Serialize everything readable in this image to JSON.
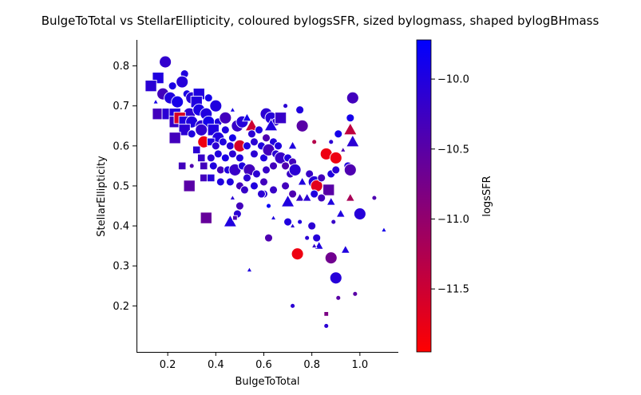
{
  "chart_data": {
    "type": "scatter",
    "title": "BulgeToTotal vs StellarEllipticity, coloured bylogsSFR, sized bylogmass, shaped bylogBHmass",
    "xlabel": "BulgeToTotal",
    "ylabel": "StellarEllipticity",
    "xlim": [
      0.07,
      1.16
    ],
    "ylim": [
      0.085,
      0.865
    ],
    "xticks": [
      0.2,
      0.4,
      0.6,
      0.8,
      1.0
    ],
    "xtick_labels": [
      "0.2",
      "0.4",
      "0.6",
      "0.8",
      "1.0"
    ],
    "yticks": [
      0.2,
      0.3,
      0.4,
      0.5,
      0.6,
      0.7,
      0.8
    ],
    "ytick_labels": [
      "0.2",
      "0.3",
      "0.4",
      "0.5",
      "0.6",
      "0.7",
      "0.8"
    ],
    "grid": false,
    "colorbar": {
      "label": "logsSFR",
      "range": [
        -11.95,
        -9.72
      ],
      "ticks": [
        -10.0,
        -10.5,
        -11.0,
        -11.5
      ],
      "tick_labels": [
        "−10.0",
        "−10.5",
        "−11.0",
        "−11.5"
      ],
      "colors": [
        "#ff0000",
        "#0000ff"
      ]
    },
    "size_variable": "logmass",
    "shape_variable": "logBHmass",
    "points": [
      {
        "x": 0.19,
        "y": 0.81,
        "c": -10.15,
        "s": 3,
        "m": "o"
      },
      {
        "x": 0.16,
        "y": 0.77,
        "c": -10.0,
        "s": 3,
        "m": "s"
      },
      {
        "x": 0.13,
        "y": 0.75,
        "c": -10.1,
        "s": 3,
        "m": "s"
      },
      {
        "x": 0.27,
        "y": 0.78,
        "c": -10.0,
        "s": 2,
        "m": "o"
      },
      {
        "x": 0.26,
        "y": 0.76,
        "c": -10.05,
        "s": 3,
        "m": "o"
      },
      {
        "x": 0.22,
        "y": 0.75,
        "c": -9.95,
        "s": 2,
        "m": "o"
      },
      {
        "x": 0.18,
        "y": 0.73,
        "c": -10.3,
        "s": 3,
        "m": "o"
      },
      {
        "x": 0.21,
        "y": 0.72,
        "c": -10.0,
        "s": 3,
        "m": "o"
      },
      {
        "x": 0.24,
        "y": 0.71,
        "c": -9.9,
        "s": 3,
        "m": "o"
      },
      {
        "x": 0.15,
        "y": 0.71,
        "c": -9.9,
        "s": 1,
        "m": "^"
      },
      {
        "x": 0.28,
        "y": 0.73,
        "c": -9.95,
        "s": 2,
        "m": "o"
      },
      {
        "x": 0.3,
        "y": 0.72,
        "c": -10.05,
        "s": 3,
        "m": "o"
      },
      {
        "x": 0.33,
        "y": 0.73,
        "c": -10.0,
        "s": 3,
        "m": "s"
      },
      {
        "x": 0.32,
        "y": 0.71,
        "c": -10.0,
        "s": 3,
        "m": "s"
      },
      {
        "x": 0.37,
        "y": 0.72,
        "c": -9.9,
        "s": 2,
        "m": "o"
      },
      {
        "x": 0.4,
        "y": 0.7,
        "c": -10.0,
        "s": 3,
        "m": "o"
      },
      {
        "x": 0.16,
        "y": 0.68,
        "c": -10.3,
        "s": 3,
        "m": "s"
      },
      {
        "x": 0.2,
        "y": 0.68,
        "c": -10.1,
        "s": 3,
        "m": "s"
      },
      {
        "x": 0.23,
        "y": 0.68,
        "c": -10.0,
        "s": 3,
        "m": "s"
      },
      {
        "x": 0.29,
        "y": 0.68,
        "c": -10.1,
        "s": 3,
        "m": "o"
      },
      {
        "x": 0.33,
        "y": 0.69,
        "c": -9.95,
        "s": 3,
        "m": "o"
      },
      {
        "x": 0.36,
        "y": 0.68,
        "c": -10.0,
        "s": 3,
        "m": "o"
      },
      {
        "x": 0.23,
        "y": 0.66,
        "c": -10.2,
        "s": 3,
        "m": "s"
      },
      {
        "x": 0.25,
        "y": 0.67,
        "c": -11.6,
        "s": 3,
        "m": "s"
      },
      {
        "x": 0.27,
        "y": 0.66,
        "c": -10.0,
        "s": 3,
        "m": "s"
      },
      {
        "x": 0.3,
        "y": 0.66,
        "c": -10.0,
        "s": 3,
        "m": "o"
      },
      {
        "x": 0.34,
        "y": 0.65,
        "c": -10.1,
        "s": 3,
        "m": "o"
      },
      {
        "x": 0.37,
        "y": 0.66,
        "c": -9.9,
        "s": 3,
        "m": "o"
      },
      {
        "x": 0.41,
        "y": 0.66,
        "c": -10.0,
        "s": 2,
        "m": "o"
      },
      {
        "x": 0.44,
        "y": 0.67,
        "c": -10.3,
        "s": 3,
        "m": "o"
      },
      {
        "x": 0.47,
        "y": 0.69,
        "c": -9.9,
        "s": 1,
        "m": "^"
      },
      {
        "x": 0.27,
        "y": 0.64,
        "c": -10.1,
        "s": 3,
        "m": "s"
      },
      {
        "x": 0.23,
        "y": 0.62,
        "c": -10.3,
        "s": 3,
        "m": "s"
      },
      {
        "x": 0.3,
        "y": 0.63,
        "c": -10.0,
        "s": 2,
        "m": "o"
      },
      {
        "x": 0.34,
        "y": 0.64,
        "c": -10.15,
        "s": 3,
        "m": "o"
      },
      {
        "x": 0.39,
        "y": 0.64,
        "c": -10.0,
        "s": 3,
        "m": "s"
      },
      {
        "x": 0.41,
        "y": 0.62,
        "c": -10.0,
        "s": 3,
        "m": "o"
      },
      {
        "x": 0.44,
        "y": 0.64,
        "c": -10.0,
        "s": 2,
        "m": "o"
      },
      {
        "x": 0.47,
        "y": 0.62,
        "c": -9.9,
        "s": 2,
        "m": "o"
      },
      {
        "x": 0.49,
        "y": 0.65,
        "c": -10.2,
        "s": 3,
        "m": "o"
      },
      {
        "x": 0.51,
        "y": 0.66,
        "c": -10.05,
        "s": 3,
        "m": "o"
      },
      {
        "x": 0.53,
        "y": 0.67,
        "c": -9.9,
        "s": 2,
        "m": "^"
      },
      {
        "x": 0.55,
        "y": 0.65,
        "c": -11.5,
        "s": 3,
        "m": "^"
      },
      {
        "x": 0.55,
        "y": 0.63,
        "c": -10.1,
        "s": 2,
        "m": "o"
      },
      {
        "x": 0.58,
        "y": 0.64,
        "c": -10.0,
        "s": 2,
        "m": "o"
      },
      {
        "x": 0.61,
        "y": 0.68,
        "c": -10.1,
        "s": 3,
        "m": "o"
      },
      {
        "x": 0.63,
        "y": 0.67,
        "c": -10.05,
        "s": 3,
        "m": "o"
      },
      {
        "x": 0.65,
        "y": 0.66,
        "c": -10.1,
        "s": 2,
        "m": "o"
      },
      {
        "x": 0.67,
        "y": 0.67,
        "c": -10.2,
        "s": 3,
        "m": "s"
      },
      {
        "x": 0.63,
        "y": 0.65,
        "c": -10.0,
        "s": 3,
        "m": "^"
      },
      {
        "x": 0.69,
        "y": 0.7,
        "c": -10.1,
        "s": 1,
        "m": "o"
      },
      {
        "x": 0.75,
        "y": 0.69,
        "c": -10.0,
        "s": 2,
        "m": "o"
      },
      {
        "x": 0.35,
        "y": 0.61,
        "c": -11.8,
        "s": 3,
        "m": "o"
      },
      {
        "x": 0.38,
        "y": 0.61,
        "c": -10.0,
        "s": 2,
        "m": "s"
      },
      {
        "x": 0.4,
        "y": 0.6,
        "c": -10.1,
        "s": 2,
        "m": "o"
      },
      {
        "x": 0.43,
        "y": 0.61,
        "c": -10.0,
        "s": 2,
        "m": "o"
      },
      {
        "x": 0.46,
        "y": 0.6,
        "c": -10.05,
        "s": 2,
        "m": "o"
      },
      {
        "x": 0.5,
        "y": 0.6,
        "c": -11.6,
        "s": 3,
        "m": "o"
      },
      {
        "x": 0.53,
        "y": 0.6,
        "c": -10.0,
        "s": 2,
        "m": "o"
      },
      {
        "x": 0.56,
        "y": 0.61,
        "c": -10.1,
        "s": 2,
        "m": "o"
      },
      {
        "x": 0.59,
        "y": 0.6,
        "c": -10.0,
        "s": 2,
        "m": "o"
      },
      {
        "x": 0.61,
        "y": 0.62,
        "c": -10.4,
        "s": 2,
        "m": "o"
      },
      {
        "x": 0.64,
        "y": 0.61,
        "c": -10.0,
        "s": 2,
        "m": "o"
      },
      {
        "x": 0.66,
        "y": 0.6,
        "c": -10.0,
        "s": 2,
        "m": "o"
      },
      {
        "x": 0.72,
        "y": 0.6,
        "c": -10.0,
        "s": 2,
        "m": "^"
      },
      {
        "x": 0.76,
        "y": 0.65,
        "c": -10.5,
        "s": 3,
        "m": "o"
      },
      {
        "x": 0.32,
        "y": 0.59,
        "c": -10.1,
        "s": 2,
        "m": "s"
      },
      {
        "x": 0.34,
        "y": 0.57,
        "c": -10.2,
        "s": 2,
        "m": "s"
      },
      {
        "x": 0.38,
        "y": 0.57,
        "c": -10.1,
        "s": 2,
        "m": "o"
      },
      {
        "x": 0.41,
        "y": 0.58,
        "c": -10.0,
        "s": 2,
        "m": "o"
      },
      {
        "x": 0.44,
        "y": 0.57,
        "c": -9.95,
        "s": 2,
        "m": "o"
      },
      {
        "x": 0.47,
        "y": 0.58,
        "c": -10.1,
        "s": 2,
        "m": "o"
      },
      {
        "x": 0.5,
        "y": 0.57,
        "c": -10.0,
        "s": 2,
        "m": "o"
      },
      {
        "x": 0.56,
        "y": 0.58,
        "c": -10.1,
        "s": 2,
        "m": "o"
      },
      {
        "x": 0.6,
        "y": 0.57,
        "c": -10.0,
        "s": 2,
        "m": "o"
      },
      {
        "x": 0.62,
        "y": 0.59,
        "c": -10.3,
        "s": 3,
        "m": "o"
      },
      {
        "x": 0.65,
        "y": 0.58,
        "c": -10.1,
        "s": 2,
        "m": "o"
      },
      {
        "x": 0.67,
        "y": 0.57,
        "c": -10.2,
        "s": 3,
        "m": "o"
      },
      {
        "x": 0.7,
        "y": 0.57,
        "c": -10.0,
        "s": 2,
        "m": "o"
      },
      {
        "x": 0.72,
        "y": 0.56,
        "c": -10.3,
        "s": 2,
        "m": "o"
      },
      {
        "x": 0.26,
        "y": 0.55,
        "c": -10.3,
        "s": 2,
        "m": "s"
      },
      {
        "x": 0.3,
        "y": 0.55,
        "c": -10.4,
        "s": 1,
        "m": "o"
      },
      {
        "x": 0.35,
        "y": 0.55,
        "c": -10.3,
        "s": 2,
        "m": "s"
      },
      {
        "x": 0.39,
        "y": 0.55,
        "c": -10.0,
        "s": 2,
        "m": "o"
      },
      {
        "x": 0.42,
        "y": 0.54,
        "c": -10.3,
        "s": 2,
        "m": "o"
      },
      {
        "x": 0.45,
        "y": 0.54,
        "c": -10.0,
        "s": 2,
        "m": "o"
      },
      {
        "x": 0.48,
        "y": 0.54,
        "c": -10.2,
        "s": 3,
        "m": "o"
      },
      {
        "x": 0.51,
        "y": 0.55,
        "c": -10.0,
        "s": 2,
        "m": "o"
      },
      {
        "x": 0.54,
        "y": 0.54,
        "c": -10.3,
        "s": 3,
        "m": "o"
      },
      {
        "x": 0.57,
        "y": 0.53,
        "c": -10.1,
        "s": 2,
        "m": "o"
      },
      {
        "x": 0.61,
        "y": 0.54,
        "c": -10.2,
        "s": 2,
        "m": "o"
      },
      {
        "x": 0.64,
        "y": 0.55,
        "c": -10.3,
        "s": 2,
        "m": "o"
      },
      {
        "x": 0.69,
        "y": 0.55,
        "c": -10.4,
        "s": 2,
        "m": "o"
      },
      {
        "x": 0.71,
        "y": 0.53,
        "c": -10.2,
        "s": 2,
        "m": "o"
      },
      {
        "x": 0.73,
        "y": 0.54,
        "c": -10.1,
        "s": 3,
        "m": "o"
      },
      {
        "x": 0.35,
        "y": 0.52,
        "c": -10.3,
        "s": 2,
        "m": "s"
      },
      {
        "x": 0.38,
        "y": 0.52,
        "c": -10.05,
        "s": 2,
        "m": "s"
      },
      {
        "x": 0.29,
        "y": 0.5,
        "c": -10.5,
        "s": 3,
        "m": "s"
      },
      {
        "x": 0.42,
        "y": 0.51,
        "c": -10.0,
        "s": 2,
        "m": "o"
      },
      {
        "x": 0.46,
        "y": 0.51,
        "c": -10.0,
        "s": 2,
        "m": "o"
      },
      {
        "x": 0.5,
        "y": 0.5,
        "c": -10.3,
        "s": 2,
        "m": "o"
      },
      {
        "x": 0.53,
        "y": 0.52,
        "c": -10.1,
        "s": 2,
        "m": "o"
      },
      {
        "x": 0.56,
        "y": 0.5,
        "c": -10.0,
        "s": 2,
        "m": "o"
      },
      {
        "x": 0.6,
        "y": 0.51,
        "c": -10.3,
        "s": 2,
        "m": "o"
      },
      {
        "x": 0.64,
        "y": 0.49,
        "c": -10.2,
        "s": 2,
        "m": "o"
      },
      {
        "x": 0.6,
        "y": 0.48,
        "c": -10.05,
        "s": 2,
        "m": "o"
      },
      {
        "x": 0.69,
        "y": 0.5,
        "c": -10.3,
        "s": 2,
        "m": "o"
      },
      {
        "x": 0.72,
        "y": 0.48,
        "c": -10.4,
        "s": 2,
        "m": "o"
      },
      {
        "x": 0.76,
        "y": 0.51,
        "c": -10.0,
        "s": 2,
        "m": "^"
      },
      {
        "x": 0.79,
        "y": 0.53,
        "c": -10.2,
        "s": 2,
        "m": "o"
      },
      {
        "x": 0.81,
        "y": 0.51,
        "c": -10.05,
        "s": 3,
        "m": "o"
      },
      {
        "x": 0.82,
        "y": 0.5,
        "c": -11.7,
        "s": 3,
        "m": "o"
      },
      {
        "x": 0.84,
        "y": 0.52,
        "c": -10.3,
        "s": 2,
        "m": "o"
      },
      {
        "x": 0.86,
        "y": 0.58,
        "c": -11.8,
        "s": 3,
        "m": "o"
      },
      {
        "x": 0.88,
        "y": 0.61,
        "c": -10.1,
        "s": 1,
        "m": "o"
      },
      {
        "x": 0.81,
        "y": 0.61,
        "c": -11.3,
        "s": 1,
        "m": "o"
      },
      {
        "x": 0.87,
        "y": 0.49,
        "c": -10.5,
        "s": 3,
        "m": "s"
      },
      {
        "x": 0.88,
        "y": 0.53,
        "c": -10.0,
        "s": 2,
        "m": "o"
      },
      {
        "x": 0.9,
        "y": 0.57,
        "c": -11.8,
        "s": 3,
        "m": "o"
      },
      {
        "x": 0.9,
        "y": 0.54,
        "c": -10.1,
        "s": 2,
        "m": "o"
      },
      {
        "x": 0.91,
        "y": 0.63,
        "c": -9.9,
        "s": 2,
        "m": "o"
      },
      {
        "x": 0.93,
        "y": 0.59,
        "c": -10.4,
        "s": 1,
        "m": "^"
      },
      {
        "x": 0.95,
        "y": 0.55,
        "c": -10.0,
        "s": 2,
        "m": "o"
      },
      {
        "x": 0.96,
        "y": 0.54,
        "c": -10.4,
        "s": 3,
        "m": "o"
      },
      {
        "x": 0.96,
        "y": 0.67,
        "c": -9.9,
        "s": 2,
        "m": "o"
      },
      {
        "x": 0.96,
        "y": 0.64,
        "c": -11.4,
        "s": 3,
        "m": "^"
      },
      {
        "x": 0.97,
        "y": 0.72,
        "c": -10.3,
        "s": 3,
        "m": "o"
      },
      {
        "x": 0.97,
        "y": 0.61,
        "c": -10.1,
        "s": 3,
        "m": "^"
      },
      {
        "x": 0.96,
        "y": 0.47,
        "c": -11.2,
        "s": 2,
        "m": "^"
      },
      {
        "x": 0.92,
        "y": 0.43,
        "c": -10.0,
        "s": 2,
        "m": "^"
      },
      {
        "x": 1.0,
        "y": 0.43,
        "c": -10.05,
        "s": 3,
        "m": "o"
      },
      {
        "x": 1.06,
        "y": 0.47,
        "c": -10.4,
        "s": 1,
        "m": "o"
      },
      {
        "x": 1.1,
        "y": 0.39,
        "c": -9.9,
        "s": 1,
        "m": "^"
      },
      {
        "x": 0.94,
        "y": 0.34,
        "c": -10.0,
        "s": 2,
        "m": "^"
      },
      {
        "x": 0.88,
        "y": 0.32,
        "c": -10.7,
        "s": 3,
        "m": "o"
      },
      {
        "x": 0.9,
        "y": 0.27,
        "c": -10.05,
        "s": 3,
        "m": "o"
      },
      {
        "x": 0.91,
        "y": 0.22,
        "c": -10.5,
        "s": 1,
        "m": "o"
      },
      {
        "x": 0.98,
        "y": 0.23,
        "c": -10.5,
        "s": 1,
        "m": "o"
      },
      {
        "x": 0.86,
        "y": 0.18,
        "c": -10.8,
        "s": 1,
        "m": "s"
      },
      {
        "x": 0.86,
        "y": 0.15,
        "c": -10.1,
        "s": 1,
        "m": "o"
      },
      {
        "x": 0.74,
        "y": 0.33,
        "c": -11.8,
        "s": 3,
        "m": "o"
      },
      {
        "x": 0.72,
        "y": 0.2,
        "c": -10.1,
        "s": 1,
        "m": "o"
      },
      {
        "x": 0.82,
        "y": 0.37,
        "c": -10.05,
        "s": 2,
        "m": "o"
      },
      {
        "x": 0.83,
        "y": 0.35,
        "c": -10.0,
        "s": 2,
        "m": "^"
      },
      {
        "x": 0.8,
        "y": 0.4,
        "c": -10.1,
        "s": 2,
        "m": "o"
      },
      {
        "x": 0.78,
        "y": 0.37,
        "c": -10.1,
        "s": 1,
        "m": "o"
      },
      {
        "x": 0.81,
        "y": 0.35,
        "c": -10.2,
        "s": 1,
        "m": "^"
      },
      {
        "x": 0.75,
        "y": 0.41,
        "c": -10.0,
        "s": 1,
        "m": "o"
      },
      {
        "x": 0.72,
        "y": 0.4,
        "c": -10.1,
        "s": 1,
        "m": "^"
      },
      {
        "x": 0.7,
        "y": 0.41,
        "c": -10.0,
        "s": 2,
        "m": "o"
      },
      {
        "x": 0.7,
        "y": 0.46,
        "c": -10.0,
        "s": 3,
        "m": "^"
      },
      {
        "x": 0.75,
        "y": 0.47,
        "c": -10.2,
        "s": 2,
        "m": "^"
      },
      {
        "x": 0.78,
        "y": 0.47,
        "c": -10.1,
        "s": 2,
        "m": "^"
      },
      {
        "x": 0.81,
        "y": 0.48,
        "c": -10.0,
        "s": 2,
        "m": "o"
      },
      {
        "x": 0.84,
        "y": 0.47,
        "c": -10.3,
        "s": 2,
        "m": "o"
      },
      {
        "x": 0.88,
        "y": 0.46,
        "c": -10.0,
        "s": 2,
        "m": "^"
      },
      {
        "x": 0.89,
        "y": 0.41,
        "c": -10.2,
        "s": 1,
        "m": "o"
      },
      {
        "x": 0.62,
        "y": 0.37,
        "c": -10.4,
        "s": 2,
        "m": "o"
      },
      {
        "x": 0.62,
        "y": 0.45,
        "c": -9.8,
        "s": 1,
        "m": "o"
      },
      {
        "x": 0.64,
        "y": 0.42,
        "c": -10.0,
        "s": 1,
        "m": "^"
      },
      {
        "x": 0.59,
        "y": 0.48,
        "c": -10.1,
        "s": 2,
        "m": "o"
      },
      {
        "x": 0.54,
        "y": 0.29,
        "c": -10.0,
        "s": 1,
        "m": "^"
      },
      {
        "x": 0.5,
        "y": 0.45,
        "c": -10.3,
        "s": 2,
        "m": "o"
      },
      {
        "x": 0.49,
        "y": 0.43,
        "c": -10.1,
        "s": 2,
        "m": "o"
      },
      {
        "x": 0.46,
        "y": 0.41,
        "c": -10.0,
        "s": 3,
        "m": "^"
      },
      {
        "x": 0.48,
        "y": 0.42,
        "c": -10.4,
        "s": 1,
        "m": "s"
      },
      {
        "x": 0.36,
        "y": 0.42,
        "c": -10.6,
        "s": 3,
        "m": "s"
      },
      {
        "x": 0.47,
        "y": 0.47,
        "c": -10.1,
        "s": 1,
        "m": "^"
      },
      {
        "x": 0.52,
        "y": 0.49,
        "c": -10.2,
        "s": 2,
        "m": "o"
      }
    ]
  }
}
